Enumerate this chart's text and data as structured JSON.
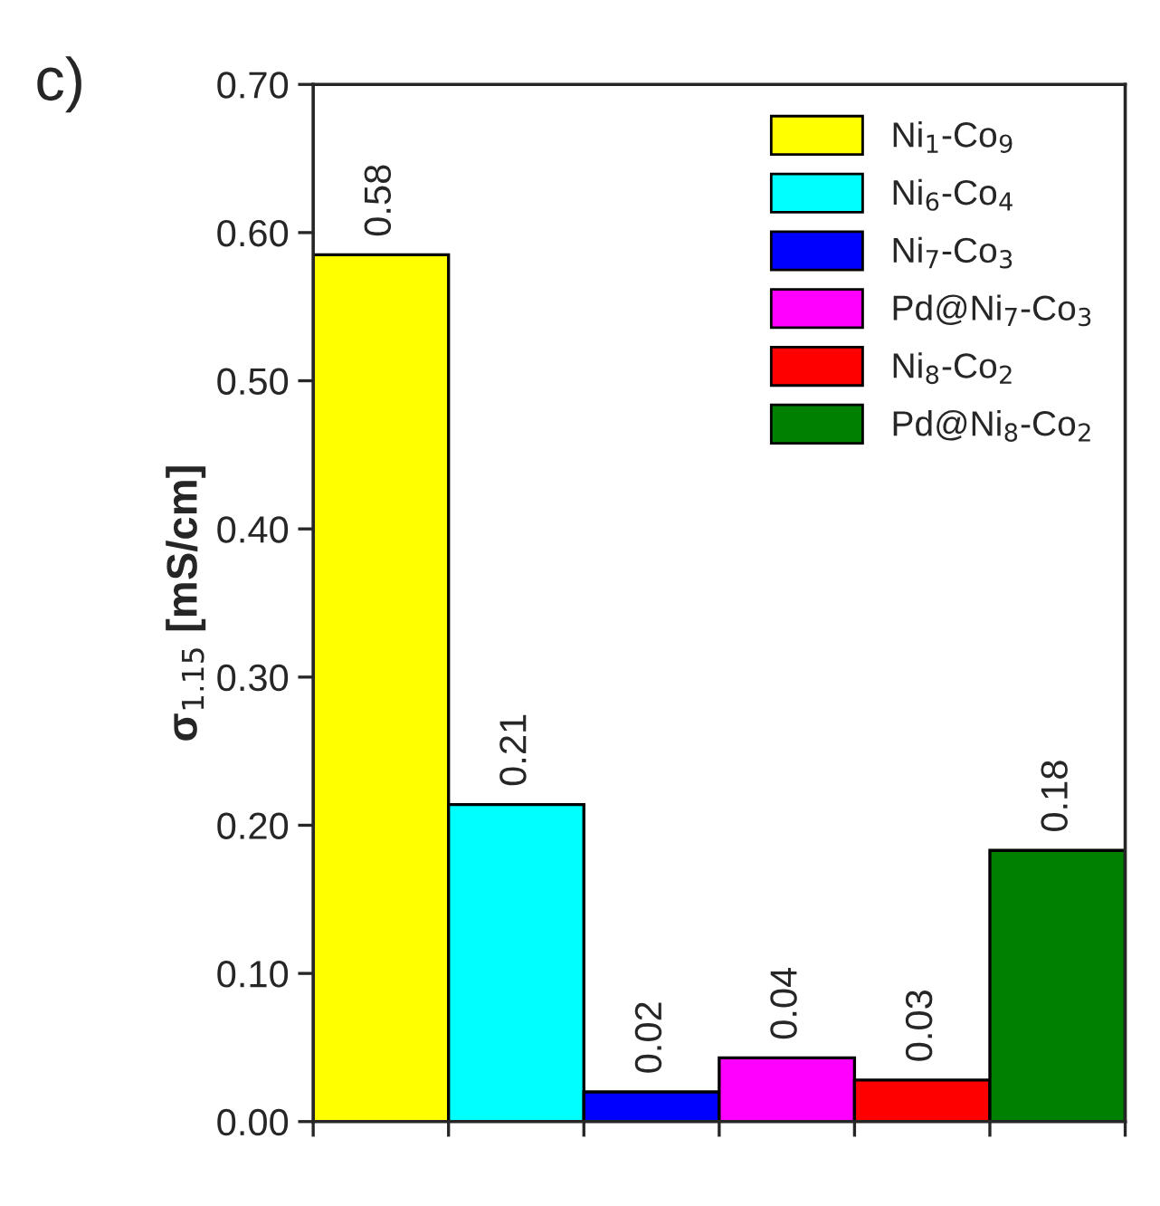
{
  "chart_data": {
    "type": "bar",
    "ylabel": "σ$_{1.15}$ [mS/cm]",
    "annotations": [
      "c)"
    ],
    "categories": [
      null,
      null,
      null,
      null,
      null,
      null
    ],
    "series": [
      {
        "name": "Ni$_{1}$-Co$_{9}$",
        "color": "#ffff00",
        "values": [
          0.585,
          null,
          null,
          null,
          null,
          null
        ],
        "value_labels": [
          "0.58",
          null,
          null,
          null,
          null,
          null
        ]
      },
      {
        "name": "Ni$_{6}$-Co$_{4}$",
        "color": "#00ffff",
        "values": [
          null,
          0.214,
          null,
          null,
          null,
          null
        ],
        "value_labels": [
          null,
          "0.21",
          null,
          null,
          null,
          null
        ]
      },
      {
        "name": "Ni$_{7}$-Co$_{3}$",
        "color": "#0000ff",
        "values": [
          null,
          null,
          0.02,
          null,
          null,
          null
        ],
        "value_labels": [
          null,
          null,
          "0.02",
          null,
          null,
          null
        ]
      },
      {
        "name": "Pd@Ni$_{7}$-Co$_{3}$",
        "color": "#ff00ff",
        "values": [
          null,
          null,
          null,
          0.043,
          null,
          null
        ],
        "value_labels": [
          null,
          null,
          null,
          "0.04",
          null,
          null
        ]
      },
      {
        "name": "Ni$_{8}$-Co$_{2}$",
        "color": "#ff0000",
        "values": [
          null,
          null,
          null,
          null,
          0.028,
          null
        ],
        "value_labels": [
          null,
          null,
          null,
          null,
          "0.03",
          null
        ]
      },
      {
        "name": "Pd@Ni$_{8}$-Co$_{2}$",
        "color": "#008000",
        "values": [
          null,
          null,
          null,
          null,
          null,
          0.183
        ],
        "value_labels": [
          null,
          null,
          null,
          null,
          null,
          "0.18"
        ]
      }
    ],
    "ylim": [
      0,
      0.7
    ],
    "yticks": [
      {
        "value": 0,
        "label": "0.00"
      },
      {
        "value": 0.1,
        "label": "0.10"
      },
      {
        "value": 0.2,
        "label": "0.20"
      },
      {
        "value": 0.3,
        "label": "0.30"
      },
      {
        "value": 0.4,
        "label": "0.40"
      },
      {
        "value": 0.5,
        "label": "0.50"
      },
      {
        "value": 0.6,
        "label": "0.60"
      },
      {
        "value": 0.7,
        "label": "0.70"
      }
    ],
    "legend": "top right",
    "grid": false,
    "tick_labels": "y"
  }
}
